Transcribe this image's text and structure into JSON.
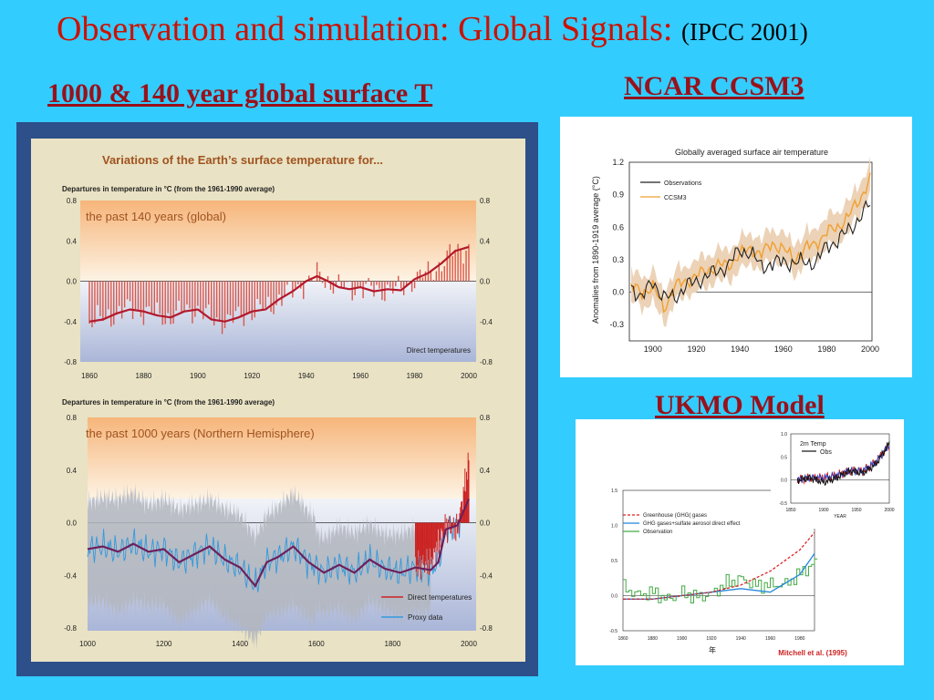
{
  "slide": {
    "title_main": "Observation and simulation: Global Signals:",
    "title_sub": "(IPCC 2001)",
    "left_heading": "1000 & 140 year global  surface T",
    "ncar_heading": "NCAR CCSM3",
    "ukmo_heading": "UKMO Model"
  },
  "colors": {
    "background": "#33ccff",
    "title": "#cc1100",
    "heading": "#99111a",
    "ipcc_frame": "#2d4f8a",
    "ipcc_paper": "#e9e2c4",
    "direct": "#cc2222",
    "proxy": "#3399dd",
    "smooth": "#8a1a3a",
    "ccsm3": "#f0a030",
    "obs": "#222222"
  },
  "chart_data": [
    {
      "type": "bar",
      "panel": "ipcc-140",
      "heading": "Variations of the Earth’s surface temperature for...",
      "ylabel": "Departures in temperature in °C (from the 1961-1990 average)",
      "panel_label": "the past 140 years (global)",
      "legend": [
        "Direct temperatures"
      ],
      "xlim": [
        1860,
        2000
      ],
      "ylim": [
        -0.8,
        0.8
      ],
      "xticks": [
        1860,
        1880,
        1900,
        1920,
        1940,
        1960,
        1980,
        2000
      ],
      "yticks": [
        0.8,
        0.4,
        0.0,
        -0.4,
        -0.8
      ],
      "smooth": [
        [
          1860,
          -0.4
        ],
        [
          1865,
          -0.38
        ],
        [
          1870,
          -0.32
        ],
        [
          1875,
          -0.28
        ],
        [
          1880,
          -0.3
        ],
        [
          1885,
          -0.34
        ],
        [
          1890,
          -0.36
        ],
        [
          1895,
          -0.3
        ],
        [
          1900,
          -0.28
        ],
        [
          1905,
          -0.38
        ],
        [
          1910,
          -0.4
        ],
        [
          1915,
          -0.36
        ],
        [
          1920,
          -0.3
        ],
        [
          1925,
          -0.28
        ],
        [
          1930,
          -0.18
        ],
        [
          1935,
          -0.1
        ],
        [
          1940,
          0.0
        ],
        [
          1944,
          0.05
        ],
        [
          1948,
          0.0
        ],
        [
          1952,
          -0.06
        ],
        [
          1956,
          -0.08
        ],
        [
          1960,
          -0.06
        ],
        [
          1965,
          -0.1
        ],
        [
          1970,
          -0.08
        ],
        [
          1975,
          -0.09
        ],
        [
          1980,
          0.02
        ],
        [
          1985,
          0.08
        ],
        [
          1990,
          0.18
        ],
        [
          1995,
          0.3
        ],
        [
          2000,
          0.34
        ]
      ]
    },
    {
      "type": "line",
      "panel": "ipcc-1000",
      "ylabel": "Departures in temperature in °C (from the 1961-1990 average)",
      "panel_label": "the past 1000 years (Northern Hemisphere)",
      "legend": [
        "Direct temperatures",
        "Proxy data"
      ],
      "xlim": [
        1000,
        2000
      ],
      "ylim": [
        -0.8,
        0.8
      ],
      "xticks": [
        1000,
        1200,
        1400,
        1600,
        1800,
        2000
      ],
      "yticks": [
        0.8,
        0.4,
        0.0,
        -0.4,
        -0.8
      ],
      "smooth": [
        [
          1000,
          -0.2
        ],
        [
          1040,
          -0.18
        ],
        [
          1080,
          -0.22
        ],
        [
          1120,
          -0.16
        ],
        [
          1160,
          -0.22
        ],
        [
          1200,
          -0.2
        ],
        [
          1240,
          -0.3
        ],
        [
          1280,
          -0.24
        ],
        [
          1320,
          -0.18
        ],
        [
          1360,
          -0.28
        ],
        [
          1400,
          -0.34
        ],
        [
          1440,
          -0.48
        ],
        [
          1470,
          -0.3
        ],
        [
          1500,
          -0.26
        ],
        [
          1540,
          -0.18
        ],
        [
          1580,
          -0.3
        ],
        [
          1620,
          -0.38
        ],
        [
          1660,
          -0.32
        ],
        [
          1700,
          -0.38
        ],
        [
          1740,
          -0.28
        ],
        [
          1780,
          -0.35
        ],
        [
          1820,
          -0.38
        ],
        [
          1860,
          -0.34
        ],
        [
          1900,
          -0.36
        ],
        [
          1920,
          -0.3
        ],
        [
          1940,
          -0.05
        ],
        [
          1970,
          -0.02
        ],
        [
          2000,
          0.18
        ]
      ]
    },
    {
      "type": "line",
      "panel": "ncar",
      "title": "Globally averaged surface air temperature",
      "ylabel": "Anomalies from 1890-1919 average (°C)",
      "xlim": [
        1890,
        2000
      ],
      "ylim": [
        -0.45,
        1.2
      ],
      "xticks": [
        1900,
        1920,
        1940,
        1960,
        1980,
        2000
      ],
      "yticks": [
        1.2,
        0.9,
        0.6,
        0.3,
        0.0,
        -0.3
      ],
      "series": [
        {
          "name": "Observations",
          "points": [
            [
              1890,
              0.05
            ],
            [
              1895,
              -0.05
            ],
            [
              1900,
              0.1
            ],
            [
              1905,
              -0.05
            ],
            [
              1910,
              -0.05
            ],
            [
              1915,
              0.05
            ],
            [
              1920,
              0.1
            ],
            [
              1925,
              0.15
            ],
            [
              1930,
              0.2
            ],
            [
              1935,
              0.25
            ],
            [
              1940,
              0.4
            ],
            [
              1945,
              0.35
            ],
            [
              1950,
              0.25
            ],
            [
              1955,
              0.25
            ],
            [
              1960,
              0.3
            ],
            [
              1965,
              0.25
            ],
            [
              1970,
              0.3
            ],
            [
              1975,
              0.25
            ],
            [
              1980,
              0.45
            ],
            [
              1985,
              0.45
            ],
            [
              1990,
              0.6
            ],
            [
              1995,
              0.65
            ],
            [
              2000,
              0.85
            ]
          ]
        },
        {
          "name": "CCSM3",
          "points": [
            [
              1890,
              0.05
            ],
            [
              1895,
              0.0
            ],
            [
              1900,
              0.05
            ],
            [
              1905,
              -0.15
            ],
            [
              1910,
              0.05
            ],
            [
              1915,
              0.1
            ],
            [
              1920,
              0.15
            ],
            [
              1925,
              0.2
            ],
            [
              1930,
              0.25
            ],
            [
              1935,
              0.25
            ],
            [
              1940,
              0.35
            ],
            [
              1945,
              0.4
            ],
            [
              1950,
              0.35
            ],
            [
              1955,
              0.45
            ],
            [
              1960,
              0.4
            ],
            [
              1965,
              0.3
            ],
            [
              1970,
              0.4
            ],
            [
              1975,
              0.45
            ],
            [
              1980,
              0.55
            ],
            [
              1985,
              0.6
            ],
            [
              1990,
              0.7
            ],
            [
              1995,
              0.85
            ],
            [
              2000,
              1.05
            ]
          ]
        }
      ]
    },
    {
      "type": "line",
      "panel": "ukmo",
      "xlim": [
        1860,
        1990
      ],
      "ylim": [
        -0.5,
        1.5
      ],
      "xticks": [
        1860,
        1880,
        1900,
        1920,
        1940,
        1960,
        1980
      ],
      "yticks": [
        1.5,
        1.0,
        0.5,
        0.0,
        -0.5
      ],
      "xlabel": "年",
      "credit": "Mitchell et al. (1995)",
      "series": [
        {
          "name": "Greenhouse (GHG( gases",
          "points": [
            [
              1860,
              -0.05
            ],
            [
              1880,
              -0.05
            ],
            [
              1900,
              0.0
            ],
            [
              1920,
              0.05
            ],
            [
              1940,
              0.15
            ],
            [
              1960,
              0.35
            ],
            [
              1980,
              0.65
            ],
            [
              1990,
              0.9
            ]
          ]
        },
        {
          "name": "GHG gases+sulfate aerosol direct effect",
          "points": [
            [
              1860,
              -0.05
            ],
            [
              1880,
              -0.05
            ],
            [
              1900,
              0.0
            ],
            [
              1920,
              0.05
            ],
            [
              1940,
              0.1
            ],
            [
              1960,
              0.05
            ],
            [
              1980,
              0.3
            ],
            [
              1990,
              0.6
            ]
          ]
        },
        {
          "name": "Observation",
          "points": [
            [
              1860,
              0.1
            ],
            [
              1870,
              0.0
            ],
            [
              1880,
              0.05
            ],
            [
              1890,
              -0.05
            ],
            [
              1900,
              0.05
            ],
            [
              1910,
              0.0
            ],
            [
              1920,
              0.05
            ],
            [
              1930,
              0.2
            ],
            [
              1940,
              0.25
            ],
            [
              1950,
              0.15
            ],
            [
              1960,
              0.15
            ],
            [
              1970,
              0.15
            ],
            [
              1980,
              0.3
            ],
            [
              1990,
              0.45
            ]
          ]
        }
      ]
    },
    {
      "type": "line",
      "panel": "ukmo-inset",
      "xlim": [
        1850,
        2000
      ],
      "ylim": [
        -0.5,
        1.0
      ],
      "xticks": [
        1850,
        1900,
        1950,
        2000
      ],
      "yticks": [
        1.0,
        0.5,
        0.0,
        -0.5
      ],
      "xlabel": "YEAR",
      "series": [
        {
          "name": "2m Temp",
          "points": [
            [
              1860,
              0.0
            ],
            [
              1880,
              0.05
            ],
            [
              1900,
              0.05
            ],
            [
              1920,
              0.1
            ],
            [
              1940,
              0.2
            ],
            [
              1960,
              0.2
            ],
            [
              1980,
              0.4
            ],
            [
              2000,
              0.75
            ]
          ]
        },
        {
          "name": "Obs",
          "points": [
            [
              1860,
              0.0
            ],
            [
              1880,
              0.05
            ],
            [
              1900,
              -0.05
            ],
            [
              1920,
              0.05
            ],
            [
              1940,
              0.2
            ],
            [
              1960,
              0.15
            ],
            [
              1980,
              0.35
            ],
            [
              2000,
              0.8
            ]
          ]
        }
      ]
    }
  ]
}
